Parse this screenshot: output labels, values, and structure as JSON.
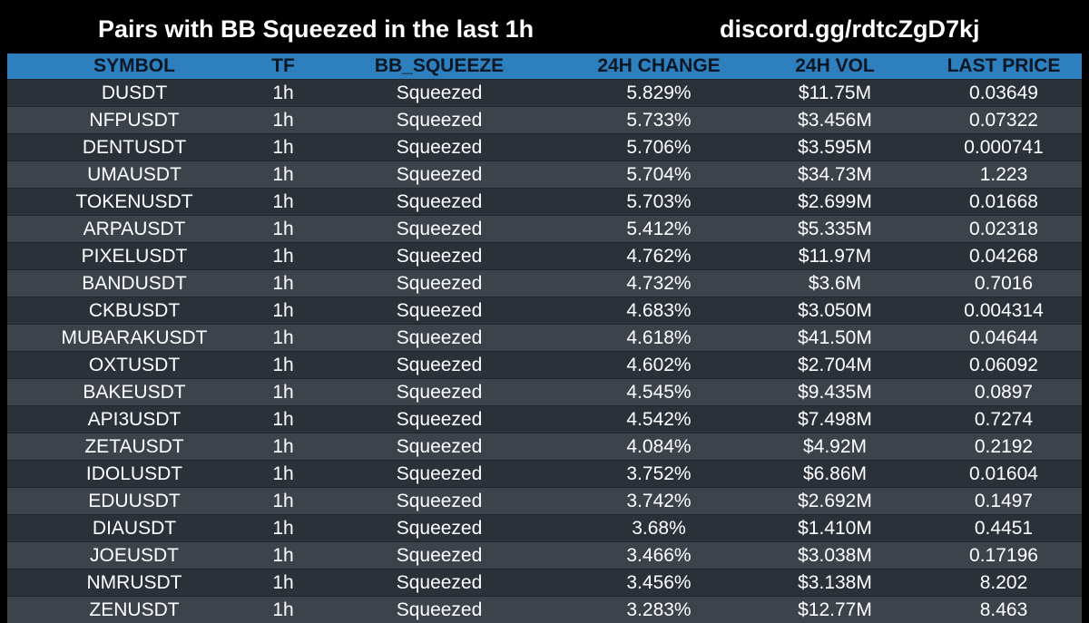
{
  "header": {
    "title": "Pairs with BB Squeezed in the last 1h",
    "discord": "discord.gg/rdtcZgD7kj"
  },
  "colors": {
    "background": "#000000",
    "header_row": "#2e7fbe",
    "row_odd": "#2b3138",
    "row_even": "#3c434b",
    "header_text": "#0b1724"
  },
  "table": {
    "columns": [
      "SYMBOL",
      "TF",
      "BB_SQUEEZE",
      "24H CHANGE",
      "24H VOL",
      "LAST PRICE"
    ],
    "rows": [
      [
        "DUSDT",
        "1h",
        "Squeezed",
        "5.829%",
        "$11.75M",
        "0.03649"
      ],
      [
        "NFPUSDT",
        "1h",
        "Squeezed",
        "5.733%",
        "$3.456M",
        "0.07322"
      ],
      [
        "DENTUSDT",
        "1h",
        "Squeezed",
        "5.706%",
        "$3.595M",
        "0.000741"
      ],
      [
        "UMAUSDT",
        "1h",
        "Squeezed",
        "5.704%",
        "$34.73M",
        "1.223"
      ],
      [
        "TOKENUSDT",
        "1h",
        "Squeezed",
        "5.703%",
        "$2.699M",
        "0.01668"
      ],
      [
        "ARPAUSDT",
        "1h",
        "Squeezed",
        "5.412%",
        "$5.335M",
        "0.02318"
      ],
      [
        "PIXELUSDT",
        "1h",
        "Squeezed",
        "4.762%",
        "$11.97M",
        "0.04268"
      ],
      [
        "BANDUSDT",
        "1h",
        "Squeezed",
        "4.732%",
        "$3.6M",
        "0.7016"
      ],
      [
        "CKBUSDT",
        "1h",
        "Squeezed",
        "4.683%",
        "$3.050M",
        "0.004314"
      ],
      [
        "MUBARAKUSDT",
        "1h",
        "Squeezed",
        "4.618%",
        "$41.50M",
        "0.04644"
      ],
      [
        "OXTUSDT",
        "1h",
        "Squeezed",
        "4.602%",
        "$2.704M",
        "0.06092"
      ],
      [
        "BAKEUSDT",
        "1h",
        "Squeezed",
        "4.545%",
        "$9.435M",
        "0.0897"
      ],
      [
        "API3USDT",
        "1h",
        "Squeezed",
        "4.542%",
        "$7.498M",
        "0.7274"
      ],
      [
        "ZETAUSDT",
        "1h",
        "Squeezed",
        "4.084%",
        "$4.92M",
        "0.2192"
      ],
      [
        "IDOLUSDT",
        "1h",
        "Squeezed",
        "3.752%",
        "$6.86M",
        "0.01604"
      ],
      [
        "EDUUSDT",
        "1h",
        "Squeezed",
        "3.742%",
        "$2.692M",
        "0.1497"
      ],
      [
        "DIAUSDT",
        "1h",
        "Squeezed",
        "3.68%",
        "$1.410M",
        "0.4451"
      ],
      [
        "JOEUSDT",
        "1h",
        "Squeezed",
        "3.466%",
        "$3.038M",
        "0.17196"
      ],
      [
        "NMRUSDT",
        "1h",
        "Squeezed",
        "3.456%",
        "$3.138M",
        "8.202"
      ],
      [
        "ZENUSDT",
        "1h",
        "Squeezed",
        "3.283%",
        "$12.77M",
        "8.463"
      ]
    ]
  }
}
